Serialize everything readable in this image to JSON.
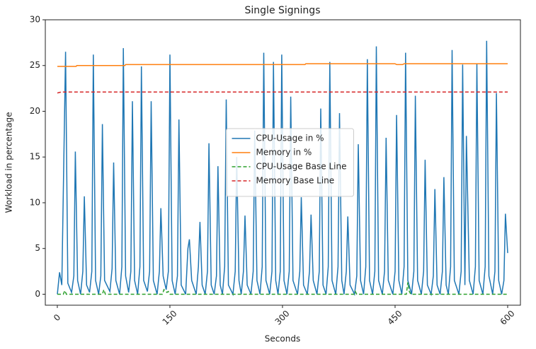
{
  "chart_data": {
    "type": "line",
    "title": "Single Signings",
    "x_label": "Seconds",
    "y_label": "Workload in percentage",
    "xlim": [
      -16,
      617
    ],
    "ylim": [
      -1.2,
      30
    ],
    "xticks": [
      0,
      150,
      300,
      450,
      600
    ],
    "yticks": [
      0,
      5,
      10,
      15,
      20,
      25,
      30
    ],
    "legend": "center",
    "grid": false,
    "series": [
      {
        "name": "CPU-Usage in %",
        "color": "#1f77b4",
        "style": "solid",
        "x": [
          0,
          3,
          6,
          11,
          14,
          19,
          22,
          24,
          27,
          31,
          34,
          36,
          39,
          43,
          46,
          48,
          51,
          55,
          58,
          60,
          63,
          70,
          73,
          75,
          78,
          83,
          86,
          88,
          91,
          95,
          98,
          100,
          103,
          107,
          110,
          112,
          115,
          120,
          123,
          125,
          128,
          133,
          136,
          138,
          141,
          145,
          148,
          150,
          153,
          157,
          160,
          162,
          165,
          171,
          174,
          176,
          179,
          185,
          188,
          190,
          193,
          197,
          200,
          202,
          205,
          209,
          212,
          214,
          217,
          220,
          223,
          225,
          228,
          234,
          237,
          239,
          242,
          245,
          248,
          250,
          253,
          258,
          261,
          263,
          266,
          270,
          273,
          275,
          278,
          283,
          286,
          288,
          291,
          294,
          297,
          299,
          302,
          306,
          309,
          311,
          314,
          320,
          323,
          325,
          328,
          333,
          336,
          338,
          341,
          346,
          349,
          351,
          354,
          358,
          361,
          363,
          366,
          371,
          374,
          376,
          379,
          382,
          385,
          387,
          390,
          396,
          399,
          401,
          404,
          408,
          411,
          413,
          416,
          420,
          423,
          425,
          428,
          433,
          436,
          438,
          441,
          447,
          450,
          452,
          455,
          459,
          462,
          464,
          467,
          472,
          475,
          477,
          480,
          485,
          488,
          490,
          493,
          498,
          501,
          503,
          506,
          510,
          513,
          515,
          518,
          521,
          524,
          526,
          529,
          535,
          538,
          540,
          543,
          545,
          549,
          554,
          557,
          559,
          562,
          567,
          570,
          572,
          575,
          580,
          583,
          585,
          588,
          592,
          595,
          597,
          600
        ],
        "values": [
          0,
          2.4,
          1,
          26.5,
          1.2,
          0.2,
          2,
          15.6,
          1.5,
          0,
          2.5,
          10.7,
          1,
          0.2,
          2.5,
          26.2,
          1.5,
          0,
          2,
          18.6,
          1.5,
          0.3,
          2.8,
          14.4,
          1.5,
          0,
          3,
          26.9,
          2,
          0.2,
          2.5,
          21.1,
          1.5,
          0,
          3,
          24.9,
          1.5,
          0.3,
          2.5,
          21.1,
          1.5,
          0,
          2.5,
          9.4,
          2,
          0.5,
          2.5,
          26.2,
          1.5,
          0,
          2,
          19.1,
          1,
          0,
          5,
          6,
          1.5,
          0,
          3,
          7.9,
          1,
          0,
          2.5,
          16.5,
          1,
          0,
          2,
          14,
          1,
          0,
          3,
          21.3,
          1,
          0,
          2.5,
          15,
          1.5,
          0,
          2.5,
          8.6,
          1,
          0,
          2.5,
          17.9,
          1.5,
          0,
          3,
          26.4,
          1.5,
          0,
          2.5,
          25.4,
          1.5,
          0,
          2.5,
          26.2,
          1.5,
          0,
          2.5,
          21.6,
          1.5,
          0,
          2.5,
          10.6,
          1,
          0,
          2.5,
          8.7,
          1.5,
          0,
          2.5,
          20.3,
          1,
          0,
          3,
          25.4,
          1.5,
          0,
          3,
          19.8,
          1.5,
          0,
          2.5,
          8.5,
          1,
          0,
          2,
          16.4,
          1.5,
          0,
          3,
          25.7,
          1.5,
          0,
          2.5,
          27.1,
          1.5,
          0,
          2.5,
          17.1,
          1.5,
          0,
          2.5,
          19.6,
          1.5,
          0,
          3,
          26.4,
          1.5,
          0,
          2.5,
          21.7,
          1.5,
          0,
          2.5,
          14.7,
          1,
          0,
          2,
          11.5,
          1,
          0,
          2.5,
          12.8,
          1,
          0,
          3,
          26.7,
          1.5,
          0,
          2.5,
          25.1,
          1,
          17.3,
          1.5,
          0,
          3,
          25.2,
          1.5,
          0,
          3,
          27.7,
          2,
          0,
          2.5,
          22,
          1.5,
          0,
          1.5,
          8.8,
          4.5
        ]
      },
      {
        "name": "Memory in %",
        "color": "#ff7f0e",
        "style": "solid",
        "x": [
          0,
          25,
          26,
          90,
          91,
          330,
          331,
          450,
          452,
          460,
          462,
          600
        ],
        "values": [
          24.9,
          24.9,
          25.0,
          25.0,
          25.1,
          25.1,
          25.2,
          25.2,
          25.1,
          25.1,
          25.2,
          25.2
        ]
      },
      {
        "name": "CPU-Usage Base Line",
        "color": "#2ca02c",
        "style": "dashed",
        "x": [
          0,
          8,
          10,
          12,
          60,
          62,
          64,
          140,
          142,
          146,
          148,
          150,
          395,
          397,
          399,
          465,
          467,
          469,
          471,
          600
        ],
        "values": [
          0,
          0,
          0.4,
          0,
          0,
          0.5,
          0,
          0,
          0.5,
          0.2,
          0.3,
          0,
          0,
          0.3,
          0,
          0,
          1.3,
          0.3,
          0,
          0
        ]
      },
      {
        "name": "Memory Base Line",
        "color": "#d62728",
        "style": "dashed",
        "x": [
          0,
          5,
          600
        ],
        "values": [
          22.0,
          22.1,
          22.1
        ]
      }
    ]
  }
}
